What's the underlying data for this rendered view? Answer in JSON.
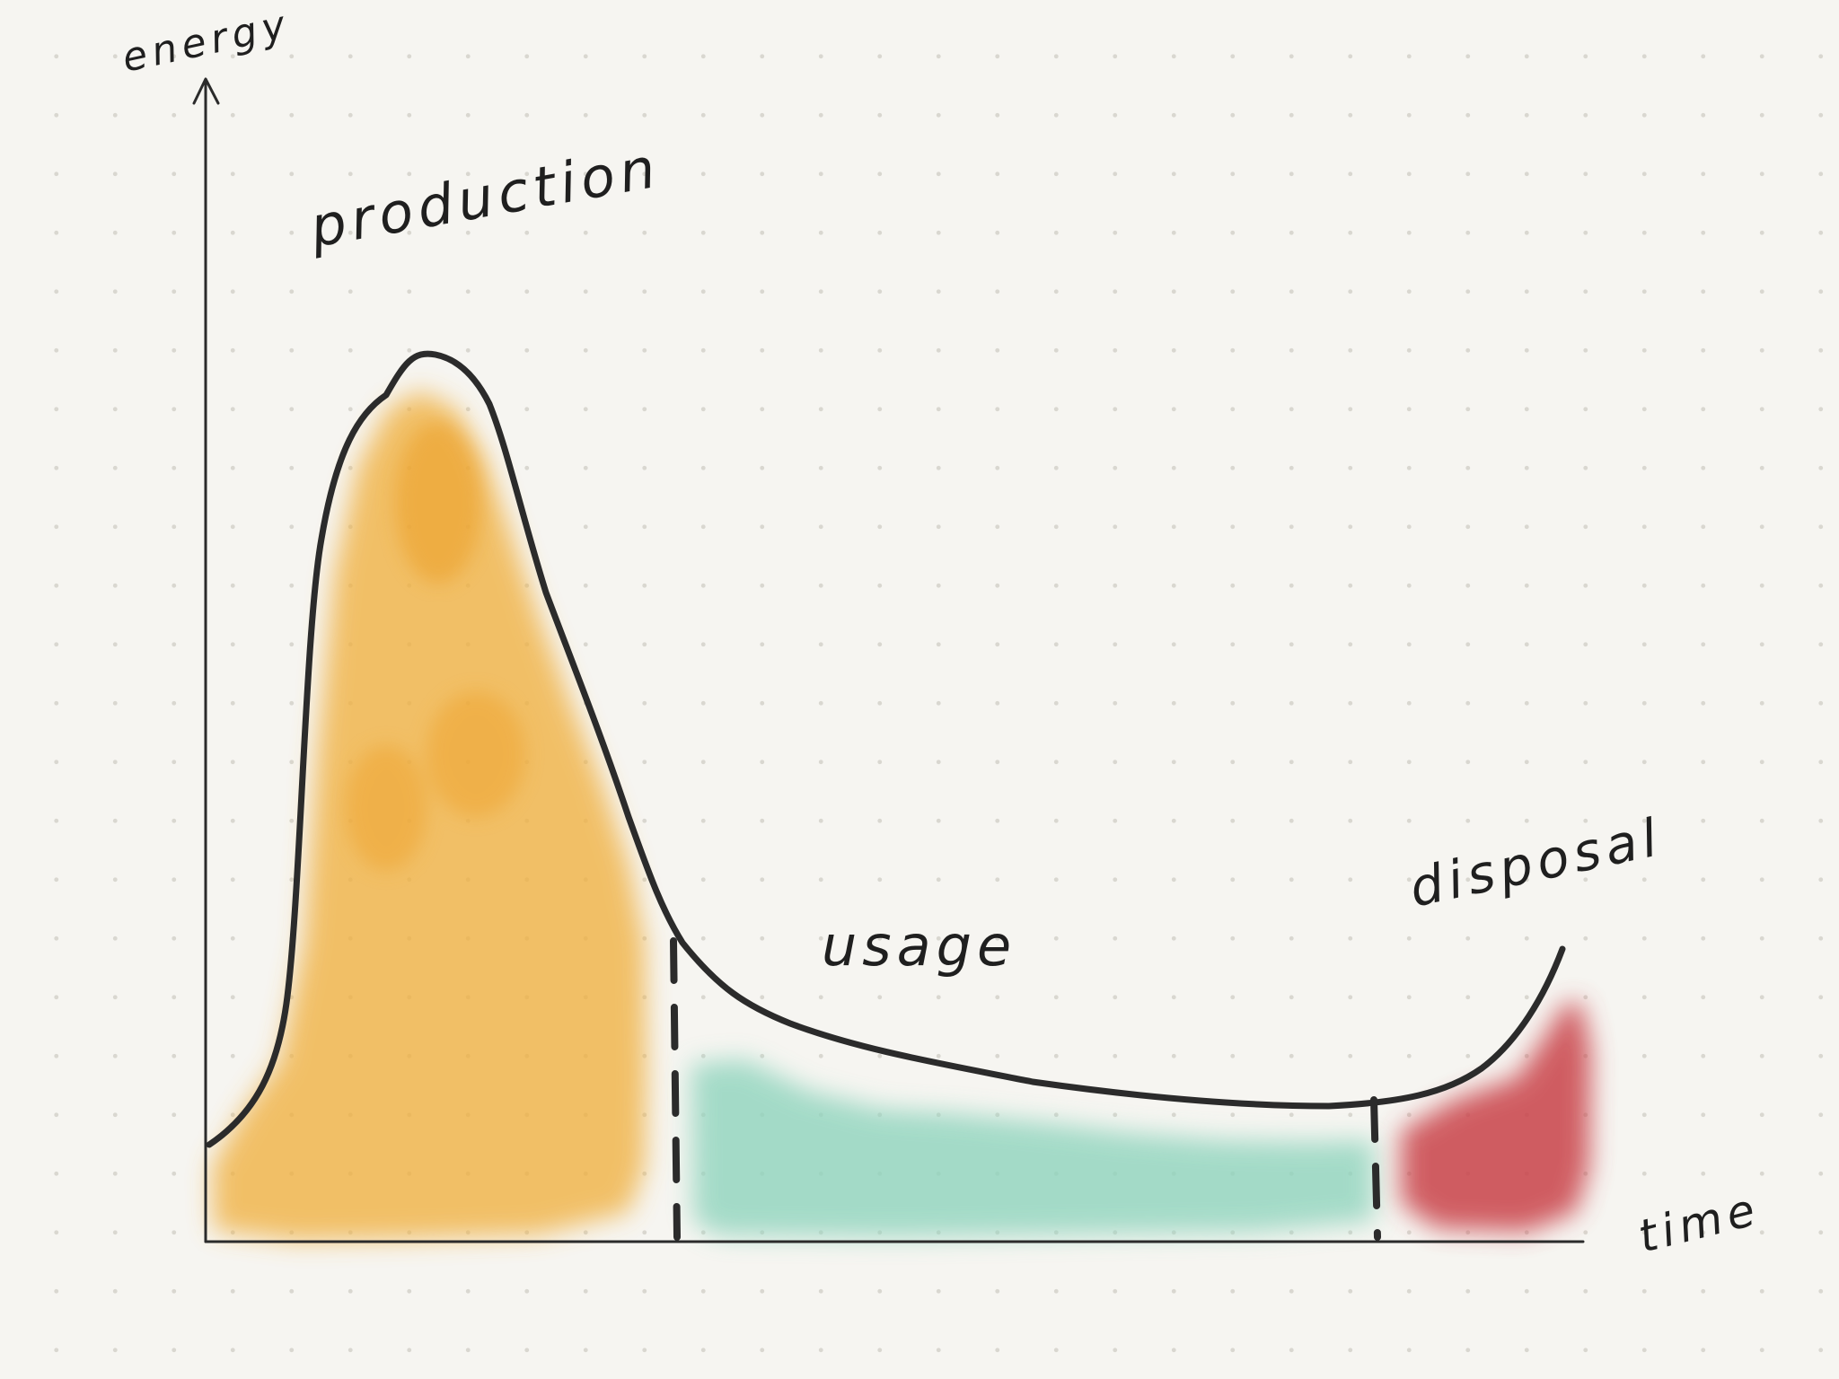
{
  "axes": {
    "y_label": "energy",
    "x_label": "time"
  },
  "phases": [
    {
      "id": "production",
      "label": "production",
      "color": "#f0b040"
    },
    {
      "id": "usage",
      "label": "usage",
      "color": "#8fd4bd"
    },
    {
      "id": "disposal",
      "label": "disposal",
      "color": "#c9434a"
    }
  ],
  "colors": {
    "ink": "#2b2b2b",
    "background": "#f6f5f1"
  }
}
